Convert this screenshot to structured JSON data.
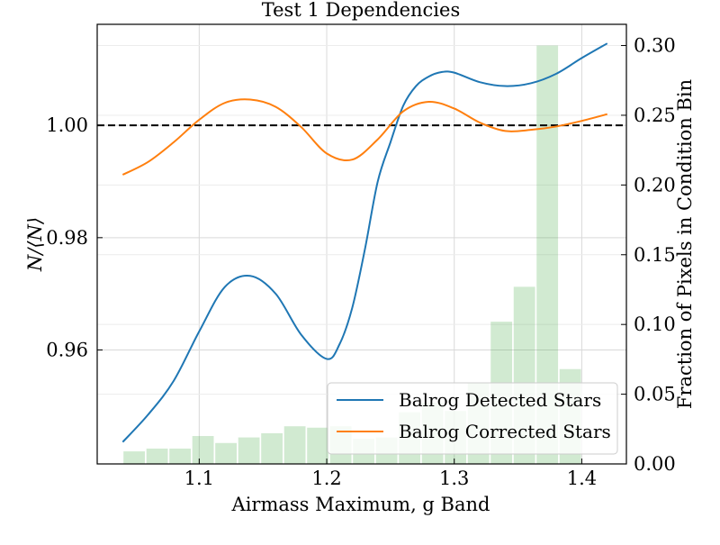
{
  "chart_data": {
    "type": "line",
    "title": "Test 1 Dependencies",
    "xlabel": "Airmass Maximum, g Band",
    "ylabel_left": "N/⟨N⟩",
    "ylabel_right": "Fraction of Pixels in Condition Bin",
    "xlim": [
      1.02,
      1.435
    ],
    "ylim_left": [
      0.9397,
      1.018
    ],
    "ylim_right": [
      0.0,
      0.3152
    ],
    "x_ticks": [
      1.1,
      1.2,
      1.3,
      1.4
    ],
    "x_tick_labels": [
      "1.1",
      "1.2",
      "1.3",
      "1.4"
    ],
    "y_left_ticks": [
      0.96,
      0.98,
      1.0
    ],
    "y_left_tick_labels": [
      "0.96",
      "0.98",
      "1.00"
    ],
    "y_right_ticks": [
      0.0,
      0.05,
      0.1,
      0.15,
      0.2,
      0.25,
      0.3
    ],
    "y_right_tick_labels": [
      "0.00",
      "0.05",
      "0.10",
      "0.15",
      "0.20",
      "0.25",
      "0.30"
    ],
    "grid": true,
    "reference_line": {
      "y": 1.0,
      "style": "dashed",
      "color": "#000000"
    },
    "legend": {
      "placement": "lower-right",
      "entries": [
        "Balrog Detected Stars",
        "Balrog Corrected Stars"
      ]
    },
    "series": [
      {
        "name": "Balrog Detected Stars",
        "axis": "left",
        "color": "#1f77b4",
        "x": [
          1.04,
          1.06,
          1.08,
          1.1,
          1.12,
          1.14,
          1.16,
          1.18,
          1.2,
          1.21,
          1.22,
          1.23,
          1.24,
          1.25,
          1.26,
          1.27,
          1.28,
          1.29,
          1.3,
          1.32,
          1.34,
          1.36,
          1.38,
          1.4,
          1.42
        ],
        "y": [
          0.9436,
          0.9485,
          0.9545,
          0.9633,
          0.9712,
          0.9732,
          0.97,
          0.9627,
          0.9584,
          0.961,
          0.9675,
          0.978,
          0.99,
          0.997,
          1.0035,
          1.007,
          1.0087,
          1.0095,
          1.0094,
          1.0077,
          1.007,
          1.0075,
          1.0092,
          1.012,
          1.0146
        ]
      },
      {
        "name": "Balrog Corrected Stars",
        "axis": "left",
        "color": "#ff7f0e",
        "x": [
          1.04,
          1.06,
          1.08,
          1.1,
          1.12,
          1.14,
          1.16,
          1.18,
          1.2,
          1.22,
          1.24,
          1.26,
          1.28,
          1.3,
          1.32,
          1.34,
          1.36,
          1.38,
          1.4,
          1.42
        ],
        "y": [
          0.9912,
          0.9935,
          0.997,
          1.001,
          1.004,
          1.0046,
          1.0033,
          0.9997,
          0.995,
          0.9939,
          0.9975,
          1.0025,
          1.0042,
          1.003,
          1.0005,
          0.999,
          0.9992,
          0.9998,
          1.0008,
          1.002
        ]
      }
    ],
    "histogram": {
      "axis": "right",
      "color": "#2ca02c",
      "opacity": 0.22,
      "bin_centers": [
        1.049,
        1.067,
        1.085,
        1.103,
        1.121,
        1.139,
        1.157,
        1.175,
        1.193,
        1.211,
        1.229,
        1.247,
        1.265,
        1.283,
        1.301,
        1.319,
        1.337,
        1.355,
        1.373,
        1.391,
        1.409
      ],
      "bin_width": 0.0175,
      "values": [
        0.009,
        0.011,
        0.011,
        0.02,
        0.015,
        0.019,
        0.022,
        0.027,
        0.026,
        0.027,
        0.018,
        0.019,
        0.037,
        0.044,
        0.038,
        0.058,
        0.102,
        0.127,
        0.3,
        0.068,
        0.0
      ]
    }
  }
}
